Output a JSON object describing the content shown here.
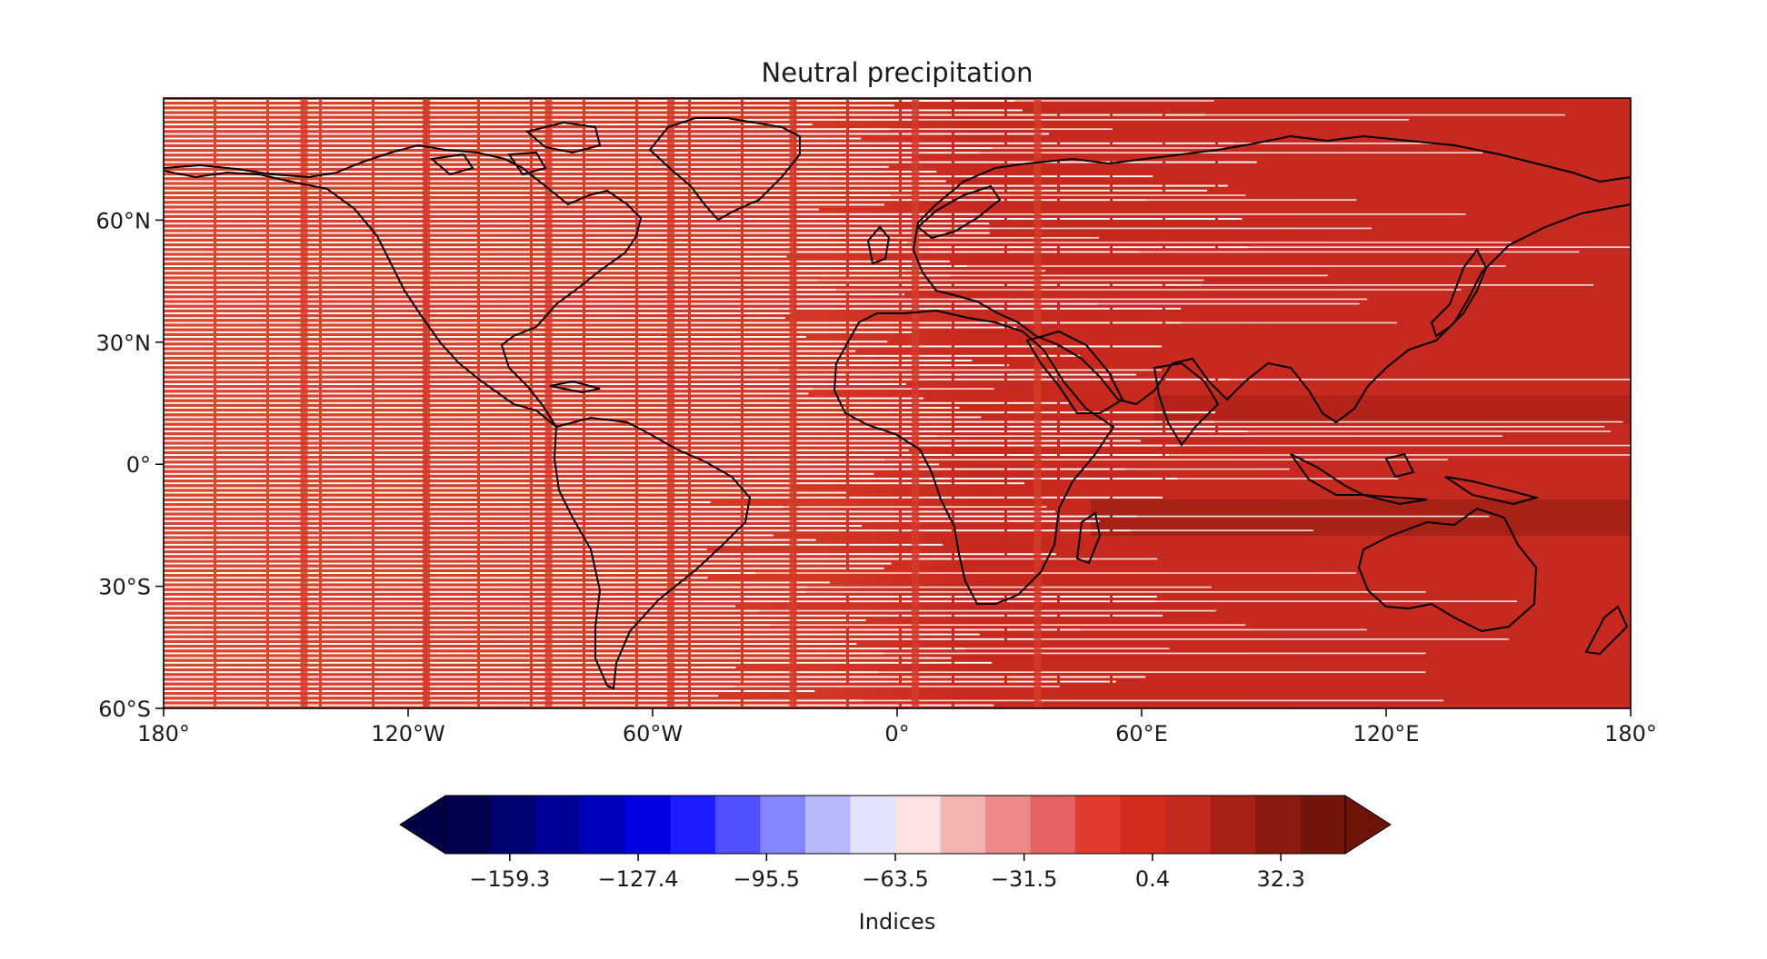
{
  "chart_data": {
    "type": "heatmap",
    "title": "Neutral precipitation",
    "projection": "PlateCarree",
    "lon_range": [
      -180,
      180
    ],
    "lat_range": [
      -60,
      90
    ],
    "x_ticks": [
      {
        "value": -180,
        "label": "180°"
      },
      {
        "value": -120,
        "label": "120°W"
      },
      {
        "value": -60,
        "label": "60°W"
      },
      {
        "value": 0,
        "label": "0°"
      },
      {
        "value": 60,
        "label": "60°E"
      },
      {
        "value": 120,
        "label": "120°E"
      },
      {
        "value": 180,
        "label": "180°"
      }
    ],
    "y_ticks": [
      {
        "value": 60,
        "label": "60°N"
      },
      {
        "value": 30,
        "label": "30°N"
      },
      {
        "value": 0,
        "label": "0°"
      },
      {
        "value": -30,
        "label": "30°S"
      },
      {
        "value": -60,
        "label": "60°S"
      }
    ],
    "field_description": "Indices mostly in range -31.5 to 16.4; lighter/whiter streaked values over Pacific and western hemisphere, uniform red 0.4 to 16.4 over eastern hemisphere, darker red band over tropical Indian Ocean and western Pacific near 10°N and 15°S",
    "colorbar": {
      "label": "Indices",
      "cmap": "seismic",
      "extend": "both",
      "vmin": -175.3,
      "vmax": 48.3,
      "step": 15.97,
      "colors": [
        "#00004c",
        "#000071",
        "#000096",
        "#0000bb",
        "#0000e1",
        "#1c1cff",
        "#5050ff",
        "#8484ff",
        "#b8b8ff",
        "#e2e2fc",
        "#fce2e2",
        "#f4b4b4",
        "#ec8a8a",
        "#e56262",
        "#e13a30",
        "#d52b1e",
        "#c22a1f",
        "#a82116",
        "#8c1a10",
        "#73150b"
      ],
      "under_color": "#000044",
      "over_color": "#6d1308",
      "ticks": [
        {
          "value": -159.3,
          "label": "−159.3"
        },
        {
          "value": -127.4,
          "label": "−127.4"
        },
        {
          "value": -95.5,
          "label": "−95.5"
        },
        {
          "value": -63.5,
          "label": "−63.5"
        },
        {
          "value": -31.5,
          "label": "−31.5"
        },
        {
          "value": 0.4,
          "label": "0.4"
        },
        {
          "value": 32.3,
          "label": "32.3"
        }
      ]
    }
  }
}
